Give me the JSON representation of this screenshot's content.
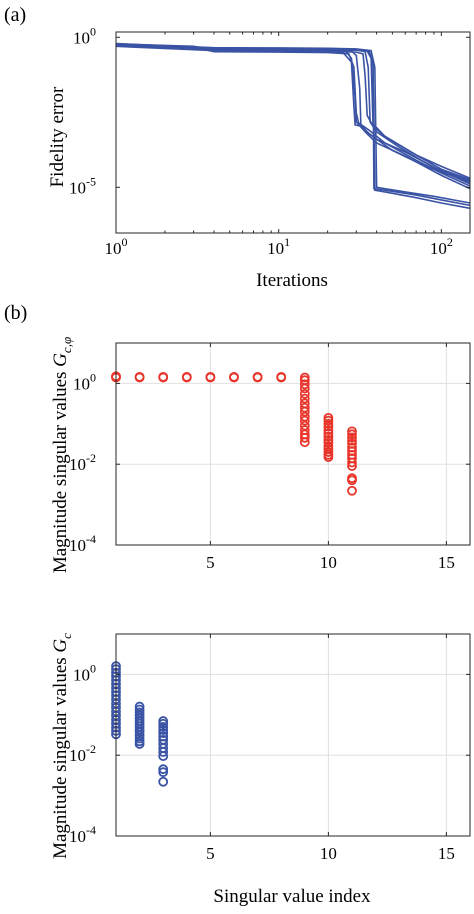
{
  "figure": {
    "panel_a_label": "(a)",
    "panel_b_label": "(b)"
  },
  "chart_data": [
    {
      "type": "line",
      "panel": "a",
      "xlabel": "Iterations",
      "ylabel": "Fidelity error",
      "xscale": "log",
      "yscale": "log",
      "xlim": [
        1,
        150
      ],
      "ylim": [
        3e-07,
        1.5
      ],
      "xticks": [
        {
          "value": 1,
          "base": "10",
          "exp": "0"
        },
        {
          "value": 10,
          "base": "10",
          "exp": "1"
        },
        {
          "value": 100,
          "base": "10",
          "exp": "2"
        }
      ],
      "yticks": [
        {
          "value": 1,
          "base": "10",
          "exp": "0"
        },
        {
          "value": 1e-05,
          "base": "10",
          "exp": "-5"
        }
      ],
      "grid": false,
      "color": "#3a53a4",
      "series": [
        {
          "points": [
            [
              1,
              0.55
            ],
            [
              3,
              0.45
            ],
            [
              4,
              0.35
            ],
            [
              10,
              0.34
            ],
            [
              20,
              0.33
            ],
            [
              25,
              0.3
            ],
            [
              28,
              0.15
            ],
            [
              29,
              0.005
            ],
            [
              29.5,
              0.0012
            ],
            [
              32,
              0.0011
            ],
            [
              35,
              0.0007
            ],
            [
              40,
              0.0004
            ],
            [
              60,
              0.00015
            ],
            [
              100,
              3.5e-05
            ],
            [
              150,
              1.3e-05
            ]
          ]
        },
        {
          "points": [
            [
              1,
              0.6
            ],
            [
              3,
              0.5
            ],
            [
              4,
              0.38
            ],
            [
              10,
              0.37
            ],
            [
              20,
              0.36
            ],
            [
              26,
              0.33
            ],
            [
              28,
              0.2
            ],
            [
              29.5,
              0.01
            ],
            [
              30,
              0.0015
            ],
            [
              35,
              0.0006
            ],
            [
              40,
              0.0003
            ],
            [
              60,
              0.00011
            ],
            [
              100,
              2.5e-05
            ],
            [
              150,
              9e-06
            ]
          ]
        },
        {
          "points": [
            [
              1,
              0.52
            ],
            [
              3,
              0.47
            ],
            [
              4,
              0.33
            ],
            [
              10,
              0.32
            ],
            [
              20,
              0.31
            ],
            [
              27,
              0.28
            ],
            [
              29,
              0.1
            ],
            [
              30,
              0.003
            ],
            [
              31,
              0.0014
            ],
            [
              36,
              0.0008
            ],
            [
              45,
              0.0003
            ],
            [
              70,
              8e-05
            ],
            [
              100,
              3e-05
            ],
            [
              150,
              1.1e-05
            ]
          ]
        },
        {
          "points": [
            [
              1,
              0.58
            ],
            [
              4,
              0.4
            ],
            [
              10,
              0.39
            ],
            [
              20,
              0.38
            ],
            [
              28,
              0.35
            ],
            [
              30,
              0.25
            ],
            [
              31.5,
              0.02
            ],
            [
              32,
              0.0012
            ],
            [
              36,
              0.0006
            ],
            [
              50,
              0.00017
            ],
            [
              80,
              5e-05
            ],
            [
              150,
              1.5e-05
            ]
          ]
        },
        {
          "points": [
            [
              1,
              0.5
            ],
            [
              4,
              0.36
            ],
            [
              10,
              0.35
            ],
            [
              20,
              0.34
            ],
            [
              30,
              0.32
            ],
            [
              33,
              0.28
            ],
            [
              34,
              0.05
            ],
            [
              35,
              0.0025
            ],
            [
              38,
              0.0011
            ],
            [
              45,
              0.0005
            ],
            [
              70,
              0.00012
            ],
            [
              100,
              5e-05
            ],
            [
              150,
              2e-05
            ]
          ]
        },
        {
          "points": [
            [
              1,
              0.56
            ],
            [
              4,
              0.42
            ],
            [
              10,
              0.41
            ],
            [
              20,
              0.4
            ],
            [
              30,
              0.38
            ],
            [
              34,
              0.33
            ],
            [
              35.5,
              0.1
            ],
            [
              36.5,
              0.0015
            ],
            [
              40,
              0.0007
            ],
            [
              55,
              0.00022
            ],
            [
              90,
              4.5e-05
            ],
            [
              150,
              1.6e-05
            ]
          ]
        },
        {
          "points": [
            [
              1,
              0.62
            ],
            [
              4,
              0.44
            ],
            [
              10,
              0.43
            ],
            [
              20,
              0.42
            ],
            [
              30,
              0.4
            ],
            [
              35,
              0.35
            ],
            [
              37,
              0.2
            ],
            [
              38,
              0.0013
            ],
            [
              45,
              0.0005
            ],
            [
              65,
              0.00015
            ],
            [
              100,
              4e-05
            ],
            [
              150,
              1.8e-05
            ]
          ]
        },
        {
          "points": [
            [
              1,
              0.54
            ],
            [
              4,
              0.41
            ],
            [
              10,
              0.4
            ],
            [
              20,
              0.39
            ],
            [
              30,
              0.37
            ],
            [
              36,
              0.34
            ],
            [
              38,
              0.15
            ],
            [
              39,
              8e-06
            ],
            [
              45,
              7e-06
            ],
            [
              70,
              4.5e-06
            ],
            [
              100,
              3e-06
            ],
            [
              150,
              2e-06
            ]
          ]
        },
        {
          "points": [
            [
              1,
              0.57
            ],
            [
              4,
              0.43
            ],
            [
              10,
              0.42
            ],
            [
              20,
              0.41
            ],
            [
              30,
              0.39
            ],
            [
              36,
              0.35
            ],
            [
              38,
              0.12
            ],
            [
              38.5,
              9e-06
            ],
            [
              45,
              8e-06
            ],
            [
              70,
              5.5e-06
            ],
            [
              100,
              3.8e-06
            ],
            [
              150,
              2.5e-06
            ]
          ]
        },
        {
          "points": [
            [
              1,
              0.6
            ],
            [
              4,
              0.45
            ],
            [
              10,
              0.44
            ],
            [
              20,
              0.43
            ],
            [
              30,
              0.41
            ],
            [
              37,
              0.36
            ],
            [
              39,
              0.1
            ],
            [
              40,
              1e-05
            ],
            [
              60,
              7e-06
            ],
            [
              90,
              5e-06
            ],
            [
              150,
              3e-06
            ]
          ]
        }
      ]
    },
    {
      "type": "scatter",
      "panel": "b-top",
      "ylabel": "Magnitude singular values G_{c,φ}",
      "ylabel_main": "Magnitude singular values ",
      "ylabel_symbol": "G",
      "ylabel_sub": "c,φ",
      "xlabel": "",
      "yscale": "log",
      "xlim": [
        1,
        16
      ],
      "ylim": [
        0.0001,
        10
      ],
      "xticks": [
        5,
        10,
        15
      ],
      "yticks": [
        {
          "value": 1,
          "base": "10",
          "exp": "0"
        },
        {
          "value": 0.01,
          "base": "10",
          "exp": "-2"
        },
        {
          "value": 0.0001,
          "base": "10",
          "exp": "-4"
        }
      ],
      "grid": true,
      "color": "#e8352b",
      "marker": "open-circle",
      "groups": [
        {
          "x": 1,
          "y": [
            1.5,
            1.4,
            1.45
          ]
        },
        {
          "x": 2,
          "y": [
            1.45,
            1.4
          ]
        },
        {
          "x": 3,
          "y": [
            1.45,
            1.4
          ]
        },
        {
          "x": 4,
          "y": [
            1.45,
            1.4
          ]
        },
        {
          "x": 5,
          "y": [
            1.45,
            1.4
          ]
        },
        {
          "x": 6,
          "y": [
            1.45,
            1.4
          ]
        },
        {
          "x": 7,
          "y": [
            1.45,
            1.4
          ]
        },
        {
          "x": 8,
          "y": [
            1.45,
            1.4
          ]
        },
        {
          "x": 9,
          "y": [
            1.4,
            1.2,
            0.95,
            0.75,
            0.55,
            0.42,
            0.32,
            0.25,
            0.2,
            0.15,
            0.12,
            0.09,
            0.07,
            0.055,
            0.045,
            0.035
          ]
        },
        {
          "x": 10,
          "y": [
            0.14,
            0.12,
            0.1,
            0.085,
            0.07,
            0.058,
            0.048,
            0.04,
            0.034,
            0.028,
            0.024,
            0.02,
            0.017,
            0.015
          ]
        },
        {
          "x": 11,
          "y": [
            0.065,
            0.055,
            0.046,
            0.038,
            0.032,
            0.026,
            0.021,
            0.017,
            0.014,
            0.011,
            0.009,
            0.0045,
            0.004,
            0.0022
          ]
        }
      ]
    },
    {
      "type": "scatter",
      "panel": "b-bottom",
      "ylabel": "Magnitude singular values G_c",
      "ylabel_main": "Magnitude singular values ",
      "ylabel_symbol": "G",
      "ylabel_sub": "c",
      "xlabel": "Singular value index",
      "yscale": "log",
      "xlim": [
        1,
        16
      ],
      "ylim": [
        0.0001,
        10
      ],
      "xticks": [
        5,
        10,
        15
      ],
      "yticks": [
        {
          "value": 1,
          "base": "10",
          "exp": "0"
        },
        {
          "value": 0.01,
          "base": "10",
          "exp": "-2"
        },
        {
          "value": 0.0001,
          "base": "10",
          "exp": "-4"
        }
      ],
      "grid": true,
      "color": "#3a53a4",
      "marker": "open-circle",
      "groups": [
        {
          "x": 1,
          "y": [
            1.6,
            1.35,
            1.1,
            0.9,
            0.72,
            0.58,
            0.46,
            0.37,
            0.3,
            0.24,
            0.19,
            0.15,
            0.12,
            0.095,
            0.075,
            0.06,
            0.048,
            0.04,
            0.033
          ]
        },
        {
          "x": 2,
          "y": [
            0.16,
            0.135,
            0.115,
            0.097,
            0.082,
            0.07,
            0.06,
            0.051,
            0.043,
            0.037,
            0.031,
            0.026,
            0.022,
            0.019
          ]
        },
        {
          "x": 3,
          "y": [
            0.07,
            0.06,
            0.05,
            0.042,
            0.035,
            0.029,
            0.024,
            0.019,
            0.015,
            0.012,
            0.0095,
            0.0045,
            0.0038,
            0.0022
          ]
        }
      ]
    }
  ]
}
